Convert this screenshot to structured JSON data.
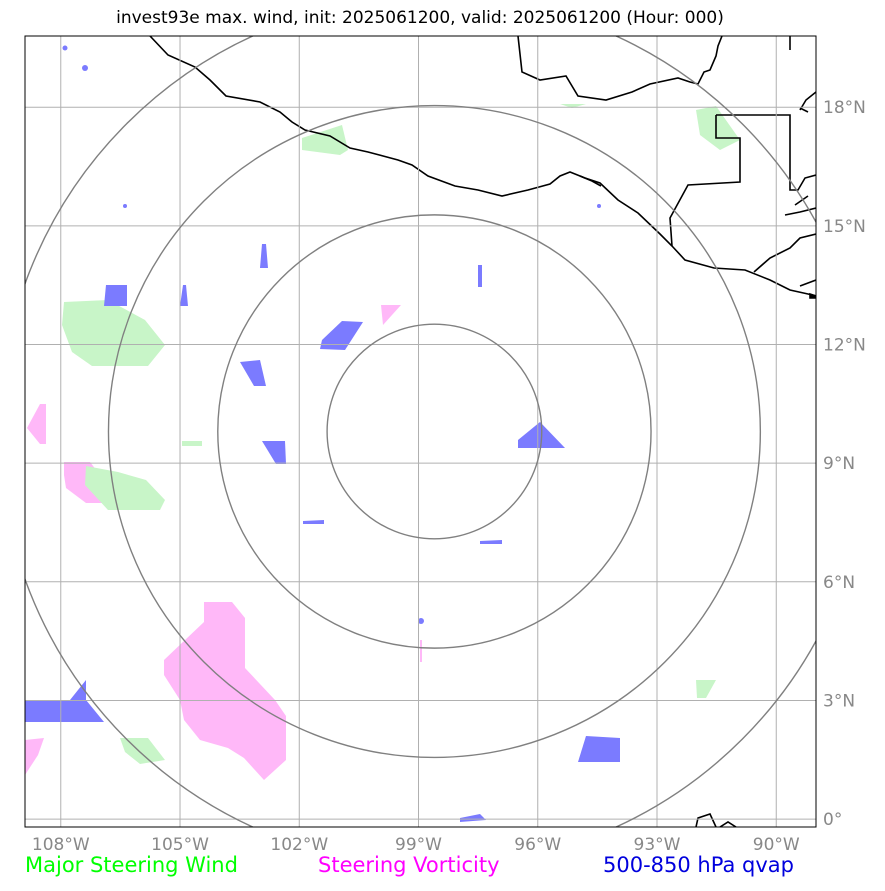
{
  "title": "invest93e max. wind, init: 2025061200, valid: 2025061200 (Hour: 000)",
  "legend": {
    "wind": "Major Steering Wind",
    "vorticity": "Steering Vorticity",
    "qvap": "500-850 hPa qvap"
  },
  "colors": {
    "wind_label": "#00ff00",
    "vorticity_label": "#ff00ff",
    "qvap_label": "#0000dd",
    "wind_fill": "#c8f5c8",
    "vorticity_fill": "#ffb8f8",
    "qvap_fill": "#7b7bff",
    "range_rings": "#808080",
    "gridlines": "#b0b0b0",
    "coastline": "#000000"
  },
  "map": {
    "lon_range": [
      -108.9,
      -89.0
    ],
    "lat_range": [
      -0.2,
      19.8
    ],
    "lon_ticks": [
      {
        "value": -108,
        "label": "108°W"
      },
      {
        "value": -105,
        "label": "105°W"
      },
      {
        "value": -102,
        "label": "102°W"
      },
      {
        "value": -99,
        "label": "99°W"
      },
      {
        "value": -96,
        "label": "96°W"
      },
      {
        "value": -93,
        "label": "93°W"
      },
      {
        "value": -90,
        "label": "90°W"
      }
    ],
    "lat_ticks": [
      {
        "value": 0,
        "label": "0°"
      },
      {
        "value": 3,
        "label": "3°N"
      },
      {
        "value": 6,
        "label": "6°N"
      },
      {
        "value": 9,
        "label": "9°N"
      },
      {
        "value": 12,
        "label": "12°N"
      },
      {
        "value": 15,
        "label": "15°N"
      },
      {
        "value": 18,
        "label": "18°N"
      }
    ],
    "storm_center": {
      "lon": -98.6,
      "lat": 9.8
    },
    "range_rings_deg": [
      2.7,
      5.45,
      8.2,
      10.95
    ],
    "grid": true
  }
}
